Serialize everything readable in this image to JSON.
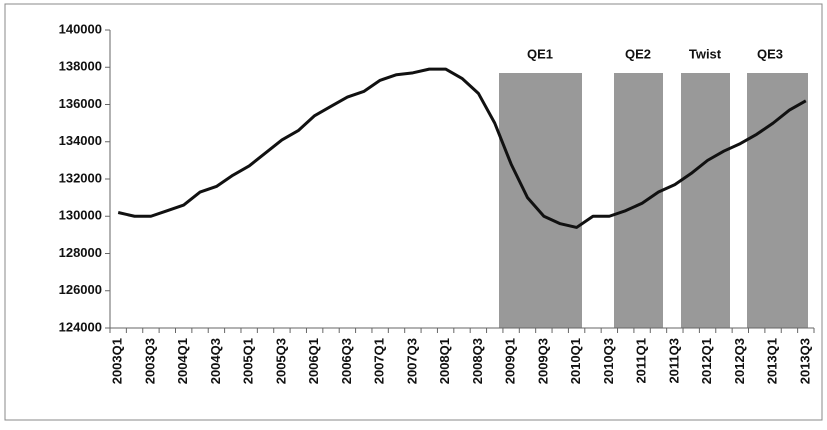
{
  "chart_data": {
    "type": "line",
    "categories": [
      "2003Q1",
      null,
      "2003Q3",
      null,
      "2004Q1",
      null,
      "2004Q3",
      null,
      "2005Q1",
      null,
      "2005Q3",
      null,
      "2006Q1",
      null,
      "2006Q3",
      null,
      "2007Q1",
      null,
      "2007Q3",
      null,
      "2008Q1",
      null,
      "2008Q3",
      null,
      "2009Q1",
      null,
      "2009Q3",
      null,
      "2010Q1",
      null,
      "2010Q3",
      null,
      "2011Q1",
      null,
      "2011Q3",
      null,
      "2012Q1",
      null,
      "2012Q3",
      null,
      "2013Q1",
      null,
      "2013Q3"
    ],
    "values": [
      130200,
      130000,
      130000,
      130300,
      130600,
      131300,
      131600,
      132200,
      132700,
      133400,
      134100,
      134600,
      135400,
      135900,
      136400,
      136700,
      137300,
      137600,
      137700,
      137900,
      137900,
      137400,
      136600,
      135000,
      132800,
      131000,
      130000,
      129600,
      129400,
      130000,
      130000,
      130300,
      130700,
      131300,
      131700,
      132300,
      133000,
      133500,
      133900,
      134400,
      135000,
      135700,
      136200
    ],
    "color": "#111111",
    "ylim": [
      124000,
      140000
    ],
    "yticks": [
      124000,
      126000,
      128000,
      130000,
      132000,
      134000,
      136000,
      138000,
      140000
    ],
    "regions": [
      "QE1",
      "QE2",
      "Twist",
      "QE3"
    ],
    "region_color": "#999999"
  }
}
